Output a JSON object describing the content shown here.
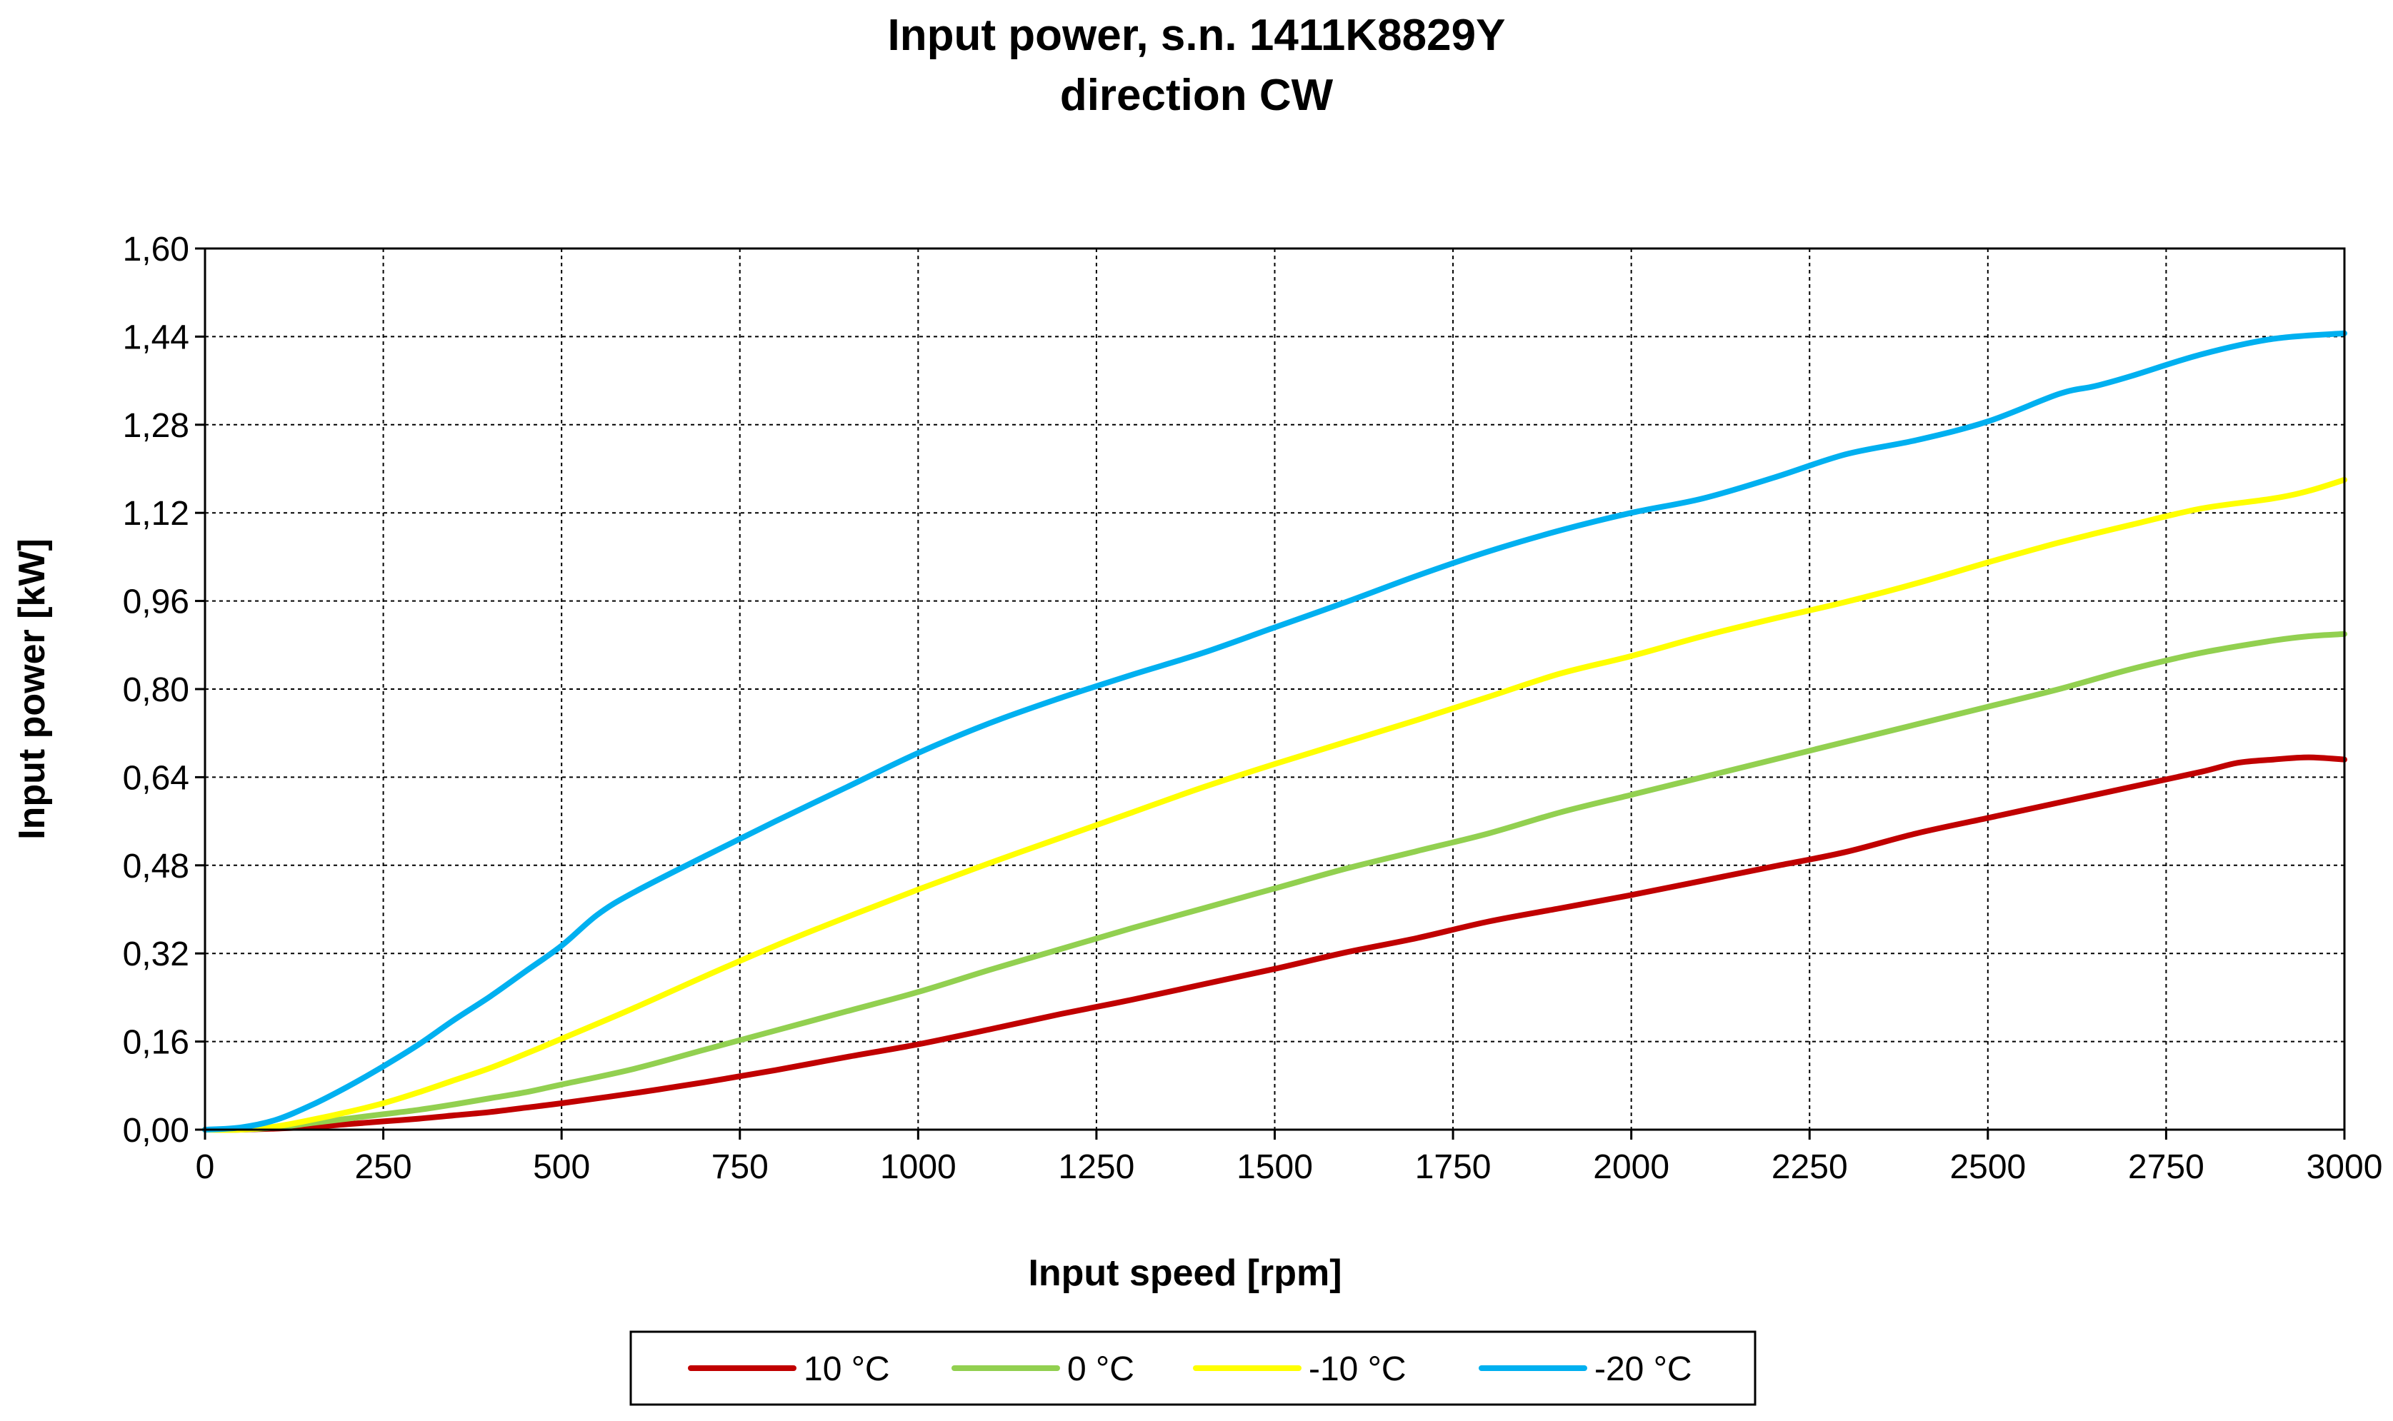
{
  "chart_data": {
    "type": "line",
    "title_line1": "Input power, s.n. 1411K8829Y",
    "title_line2": "direction CW",
    "xlabel": "Input speed [rpm]",
    "ylabel": "Input power [kW]",
    "xlim": [
      0,
      3000
    ],
    "ylim": [
      0,
      1.6
    ],
    "x_ticks": [
      "0",
      "250",
      "500",
      "750",
      "1000",
      "1250",
      "1500",
      "1750",
      "2000",
      "2250",
      "2500",
      "2750",
      "3000"
    ],
    "y_ticks": [
      "0,00",
      "0,16",
      "0,32",
      "0,48",
      "0,64",
      "0,80",
      "0,96",
      "1,12",
      "1,28",
      "1,44",
      "1,60"
    ],
    "grid": true,
    "legend_position": "bottom",
    "series": [
      {
        "name": "10 °C",
        "color": "#C00000",
        "x": [
          0,
          50,
          100,
          150,
          200,
          250,
          300,
          350,
          400,
          450,
          500,
          600,
          700,
          800,
          900,
          1000,
          1100,
          1200,
          1300,
          1400,
          1500,
          1600,
          1700,
          1800,
          1900,
          2000,
          2100,
          2200,
          2300,
          2400,
          2500,
          2600,
          2700,
          2800,
          2850,
          2900,
          2950,
          3000
        ],
        "y": [
          0,
          0,
          0.002,
          0.005,
          0.01,
          0.015,
          0.02,
          0.026,
          0.032,
          0.04,
          0.048,
          0.066,
          0.086,
          0.108,
          0.132,
          0.155,
          0.182,
          0.21,
          0.236,
          0.264,
          0.292,
          0.322,
          0.348,
          0.378,
          0.402,
          0.426,
          0.452,
          0.478,
          0.504,
          0.538,
          0.566,
          0.594,
          0.622,
          0.65,
          0.666,
          0.672,
          0.676,
          0.672
        ]
      },
      {
        "name": "0 °C",
        "color": "#92D050",
        "x": [
          0,
          50,
          100,
          150,
          200,
          250,
          300,
          350,
          400,
          450,
          500,
          600,
          700,
          800,
          900,
          1000,
          1100,
          1200,
          1300,
          1400,
          1500,
          1600,
          1700,
          1800,
          1900,
          2000,
          2100,
          2200,
          2300,
          2400,
          2500,
          2600,
          2700,
          2800,
          2900,
          2950,
          3000
        ],
        "y": [
          0,
          0,
          0.004,
          0.012,
          0.02,
          0.028,
          0.036,
          0.046,
          0.057,
          0.068,
          0.082,
          0.11,
          0.145,
          0.18,
          0.215,
          0.25,
          0.29,
          0.328,
          0.366,
          0.402,
          0.438,
          0.474,
          0.506,
          0.538,
          0.576,
          0.608,
          0.64,
          0.672,
          0.704,
          0.736,
          0.768,
          0.8,
          0.836,
          0.866,
          0.888,
          0.896,
          0.9
        ]
      },
      {
        "name": "-10 °C",
        "color": "#FFFF00",
        "x": [
          0,
          50,
          100,
          150,
          200,
          250,
          300,
          350,
          400,
          450,
          500,
          600,
          700,
          800,
          900,
          1000,
          1100,
          1200,
          1300,
          1400,
          1500,
          1600,
          1700,
          1800,
          1900,
          2000,
          2100,
          2200,
          2300,
          2400,
          2500,
          2600,
          2700,
          2800,
          2900,
          2950,
          3000
        ],
        "y": [
          0,
          0,
          0.006,
          0.018,
          0.032,
          0.048,
          0.068,
          0.09,
          0.112,
          0.138,
          0.165,
          0.22,
          0.278,
          0.334,
          0.386,
          0.436,
          0.484,
          0.53,
          0.576,
          0.622,
          0.664,
          0.704,
          0.744,
          0.786,
          0.828,
          0.86,
          0.896,
          0.928,
          0.958,
          0.992,
          1.03,
          1.066,
          1.098,
          1.128,
          1.146,
          1.16,
          1.18
        ]
      },
      {
        "name": "-20 °C",
        "color": "#00B0F0",
        "x": [
          0,
          50,
          100,
          150,
          200,
          250,
          300,
          350,
          400,
          450,
          500,
          550,
          600,
          700,
          800,
          900,
          1000,
          1100,
          1200,
          1300,
          1400,
          1500,
          1600,
          1700,
          1800,
          1900,
          2000,
          2100,
          2200,
          2300,
          2400,
          2500,
          2600,
          2650,
          2700,
          2800,
          2900,
          3000
        ],
        "y": [
          0,
          0.004,
          0.018,
          0.045,
          0.078,
          0.115,
          0.155,
          0.2,
          0.242,
          0.288,
          0.334,
          0.39,
          0.43,
          0.496,
          0.56,
          0.622,
          0.684,
          0.738,
          0.784,
          0.826,
          0.866,
          0.912,
          0.958,
          1.006,
          1.05,
          1.088,
          1.12,
          1.146,
          1.184,
          1.226,
          1.252,
          1.286,
          1.336,
          1.35,
          1.368,
          1.408,
          1.436,
          1.446
        ]
      }
    ]
  }
}
